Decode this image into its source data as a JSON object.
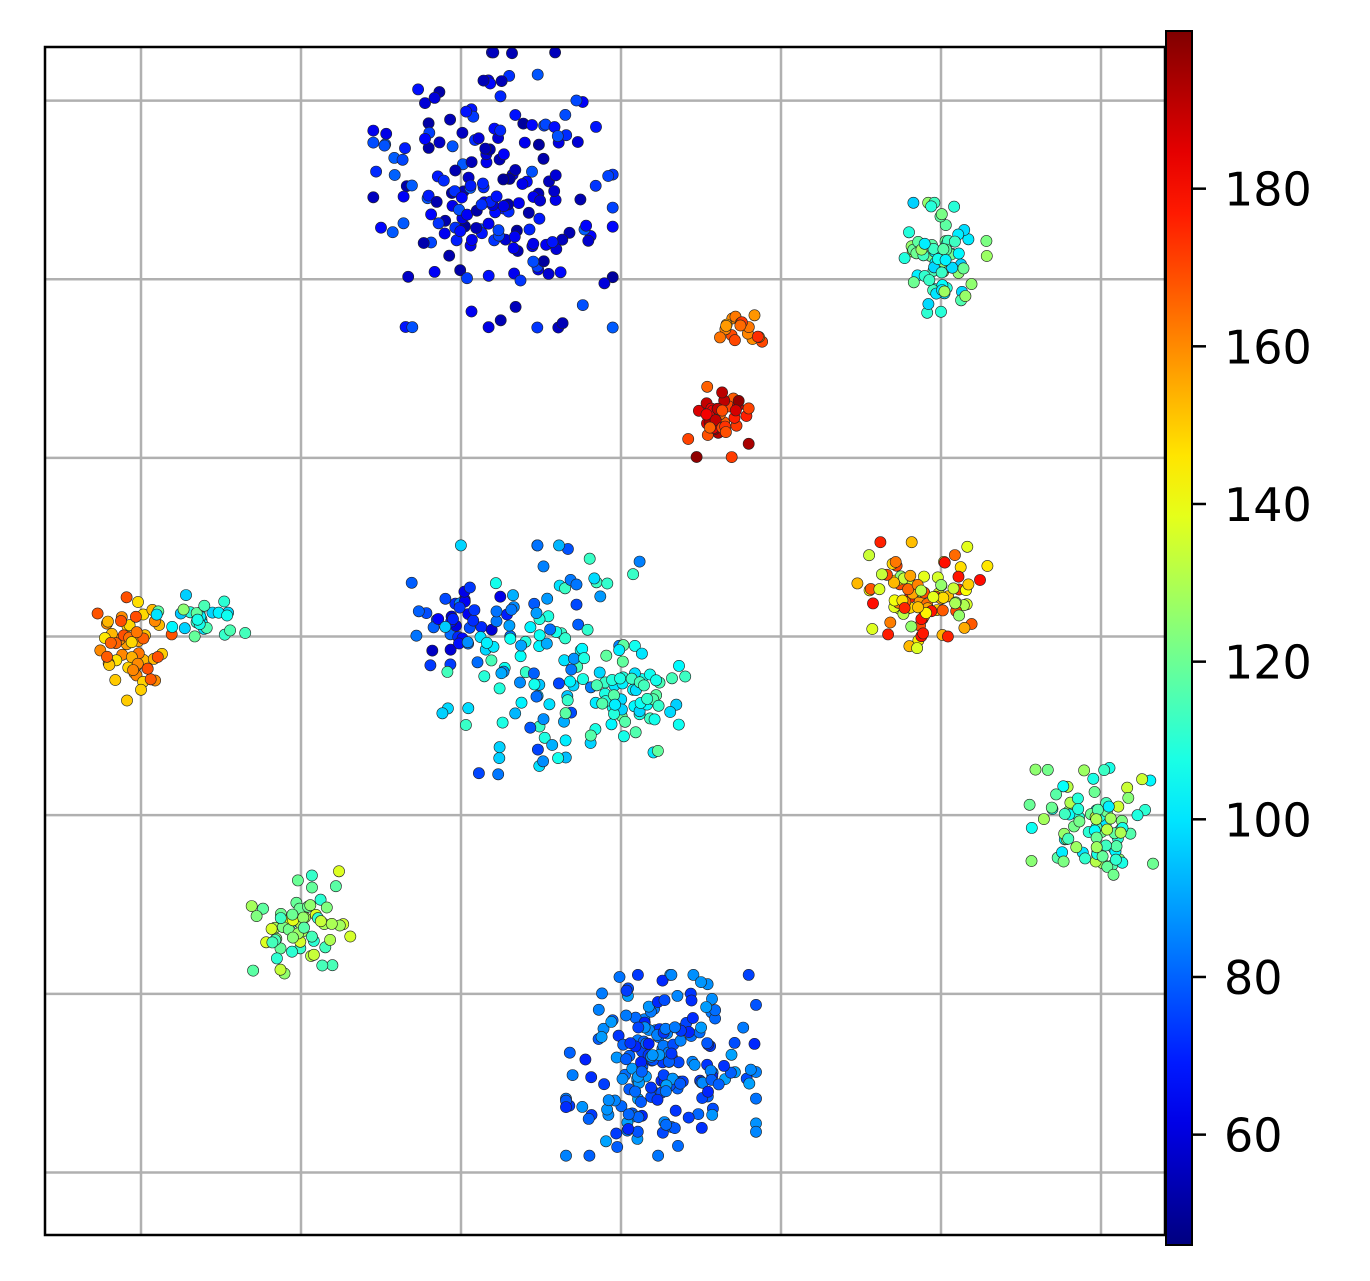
{
  "chart_data": {
    "type": "scatter",
    "title": "",
    "xlabel": "",
    "ylabel": "",
    "xlim": [
      -3.6,
      3.4
    ],
    "ylim": [
      -3.35,
      3.3
    ],
    "x_gridlines": [
      -3,
      -2,
      -1,
      0,
      1,
      2,
      3
    ],
    "y_gridlines": [
      -3,
      -2,
      -1,
      0,
      1,
      2,
      3
    ],
    "grid": true,
    "colormap": "jet",
    "colorbar": {
      "range": [
        46,
        200
      ],
      "ticks": [
        60,
        80,
        100,
        120,
        140,
        160,
        180
      ],
      "tick_labels": [
        "60",
        "80",
        "100",
        "120",
        "140",
        "160",
        "180"
      ]
    },
    "clusters": [
      {
        "cx": -0.8,
        "cy": 2.5,
        "sx": 0.34,
        "sy": 0.35,
        "n": 190,
        "vmin": 50,
        "vmax": 80,
        "seed": 11
      },
      {
        "cx": 0.75,
        "cy": 1.74,
        "sx": 0.06,
        "sy": 0.06,
        "n": 18,
        "vmin": 155,
        "vmax": 175,
        "seed": 12
      },
      {
        "cx": 0.6,
        "cy": 1.2,
        "sx": 0.09,
        "sy": 0.09,
        "n": 38,
        "vmin": 165,
        "vmax": 198,
        "seed": 13
      },
      {
        "cx": 2.0,
        "cy": 2.12,
        "sx": 0.13,
        "sy": 0.14,
        "n": 70,
        "vmin": 95,
        "vmax": 130,
        "seed": 14
      },
      {
        "cx": 1.85,
        "cy": 0.22,
        "sx": 0.2,
        "sy": 0.14,
        "n": 95,
        "vmin": 125,
        "vmax": 180,
        "seed": 15
      },
      {
        "cx": -3.05,
        "cy": -0.05,
        "sx": 0.11,
        "sy": 0.14,
        "n": 55,
        "vmin": 145,
        "vmax": 170,
        "seed": 16
      },
      {
        "cx": -2.6,
        "cy": 0.1,
        "sx": 0.15,
        "sy": 0.06,
        "n": 30,
        "vmin": 95,
        "vmax": 125,
        "seed": 17
      },
      {
        "cx": -1.0,
        "cy": 0.05,
        "sx": 0.14,
        "sy": 0.12,
        "n": 40,
        "vmin": 55,
        "vmax": 85,
        "seed": 18
      },
      {
        "cx": -0.5,
        "cy": -0.15,
        "sx": 0.28,
        "sy": 0.3,
        "n": 110,
        "vmin": 75,
        "vmax": 115,
        "seed": 19
      },
      {
        "cx": 0.05,
        "cy": -0.35,
        "sx": 0.18,
        "sy": 0.2,
        "n": 55,
        "vmin": 95,
        "vmax": 120,
        "seed": 20
      },
      {
        "cx": 2.95,
        "cy": -1.05,
        "sx": 0.18,
        "sy": 0.16,
        "n": 85,
        "vmin": 100,
        "vmax": 135,
        "seed": 21
      },
      {
        "cx": -2.0,
        "cy": -1.6,
        "sx": 0.14,
        "sy": 0.13,
        "n": 60,
        "vmin": 110,
        "vmax": 140,
        "seed": 22
      },
      {
        "cx": 0.25,
        "cy": -2.4,
        "sx": 0.27,
        "sy": 0.23,
        "n": 200,
        "vmin": 70,
        "vmax": 90,
        "seed": 23
      }
    ]
  }
}
